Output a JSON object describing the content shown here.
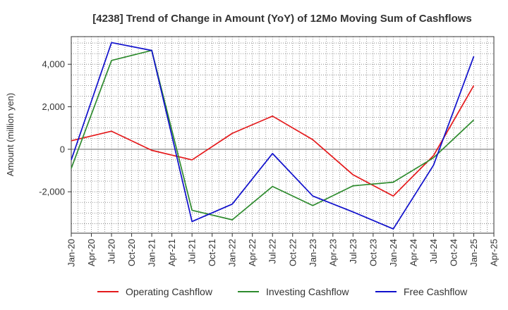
{
  "chart_data": {
    "type": "line",
    "title": "[4238]  Trend of Change in Amount (YoY) of 12Mo Moving Sum of Cashflows",
    "xlabel": "",
    "ylabel": "Amount (million yen)",
    "ylim": [
      -3950,
      5300
    ],
    "yticks": [
      -2000,
      0,
      2000,
      4000
    ],
    "ytick_labels": [
      "-2,000",
      "0",
      "2,000",
      "4,000"
    ],
    "categories": [
      "Jan-20",
      "Apr-20",
      "Jul-20",
      "Oct-20",
      "Jan-21",
      "Apr-21",
      "Jul-21",
      "Oct-21",
      "Jan-22",
      "Apr-22",
      "Jul-22",
      "Oct-22",
      "Jan-23",
      "Apr-23",
      "Jul-23",
      "Oct-23",
      "Jan-24",
      "Apr-24",
      "Jul-24",
      "Oct-24",
      "Jan-25",
      "Apr-25"
    ],
    "series": [
      {
        "name": "Operating Cashflow",
        "color": "#e41a1c",
        "values": [
          400,
          null,
          850,
          null,
          -50,
          null,
          -500,
          null,
          750,
          null,
          1560,
          null,
          450,
          null,
          -1200,
          null,
          -2200,
          null,
          -300,
          null,
          3000,
          null
        ]
      },
      {
        "name": "Investing Cashflow",
        "color": "#2e8b2e",
        "values": [
          -900,
          null,
          4180,
          null,
          4650,
          null,
          -2870,
          null,
          -3320,
          null,
          -1750,
          null,
          -2650,
          null,
          -1720,
          null,
          -1550,
          null,
          -400,
          null,
          1380,
          null
        ]
      },
      {
        "name": "Free Cashflow",
        "color": "#1010cc",
        "values": [
          -500,
          null,
          5020,
          null,
          4650,
          null,
          -3400,
          null,
          -2580,
          null,
          -200,
          null,
          -2200,
          null,
          -2950,
          null,
          -3750,
          null,
          -750,
          null,
          4370,
          null
        ]
      }
    ],
    "grid": true,
    "legend": "bottom"
  }
}
